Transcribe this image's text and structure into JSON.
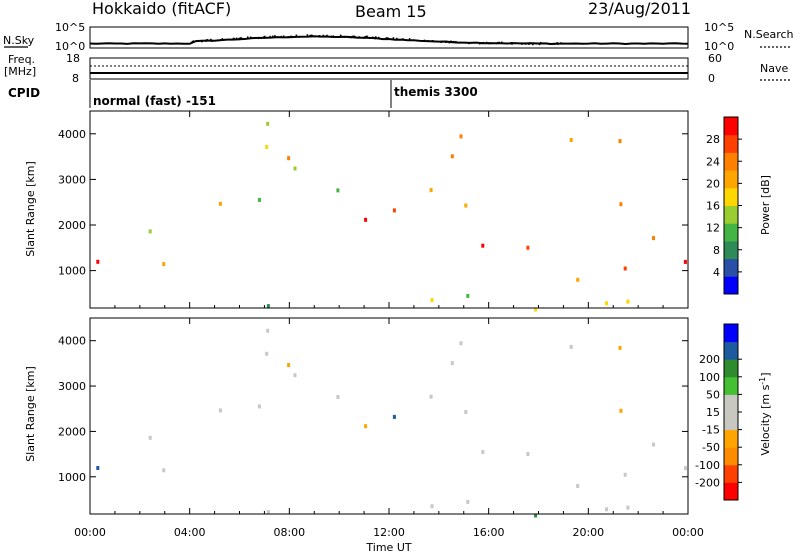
{
  "header": {
    "radar": "Hokkaido (fitACF)",
    "beam": "Beam 15",
    "date": "23/Aug/2011"
  },
  "left_labels": {
    "nsky": "N.Sky",
    "freq_line1": "Freq.",
    "freq_line2": "[MHz]",
    "cpid": "CPID"
  },
  "right_labels": {
    "nsearch": "N.Search",
    "nave": "Nave"
  },
  "noise_panel": {
    "left_ticks": [
      "10^5",
      "10^0"
    ],
    "right_ticks": [
      "10^5",
      "10^0"
    ]
  },
  "freq_panel": {
    "left_ticks": [
      "18",
      "8"
    ],
    "right_ticks": [
      "60",
      "0"
    ]
  },
  "cpid_panel": {
    "segments": [
      {
        "label": "normal (fast) -151"
      },
      {
        "label": "themis 3300"
      }
    ]
  },
  "colors": {
    "power": [
      "#0000ff",
      "#2a4fa6",
      "#2e8b57",
      "#44b544",
      "#9acd32",
      "#ffd700",
      "#ffa500",
      "#ff7f00",
      "#ff4000",
      "#ff0000"
    ],
    "velocity": [
      "#ff0000",
      "#ff4000",
      "#ff8c00",
      "#ffa500",
      "#c8c8c0",
      "#c8c8c0",
      "#44c032",
      "#2e8b2e",
      "#1e5aa0",
      "#0000ff"
    ]
  },
  "chart_data": [
    {
      "type": "heatmap",
      "title": "",
      "ylabel": "Slant Range [km]",
      "ylim": [
        180,
        4500
      ],
      "yticks": [
        "1000",
        "2000",
        "3000",
        "4000"
      ],
      "colorbar": {
        "label": "Power [dB]",
        "range": [
          0,
          32
        ],
        "ticks": [
          "4",
          "8",
          "12",
          "16",
          "20",
          "24",
          "28"
        ]
      }
    },
    {
      "type": "heatmap",
      "title": "",
      "ylabel": "Slant Range [km]",
      "ylim": [
        180,
        4500
      ],
      "yticks": [
        "1000",
        "2000",
        "3000",
        "4000"
      ],
      "colorbar": {
        "label": "Velocity [m s",
        "label_sup": "-1",
        "label_end": "]",
        "range": [
          -250,
          250
        ],
        "ticks": [
          "-200",
          "-100",
          "-50",
          "-15",
          "15",
          "50",
          "100",
          "200"
        ]
      }
    }
  ],
  "xaxis": {
    "label": "Time UT",
    "ticks": [
      "00:00",
      "04:00",
      "08:00",
      "12:00",
      "16:00",
      "20:00",
      "00:00"
    ],
    "range_hours": [
      0,
      24
    ]
  }
}
